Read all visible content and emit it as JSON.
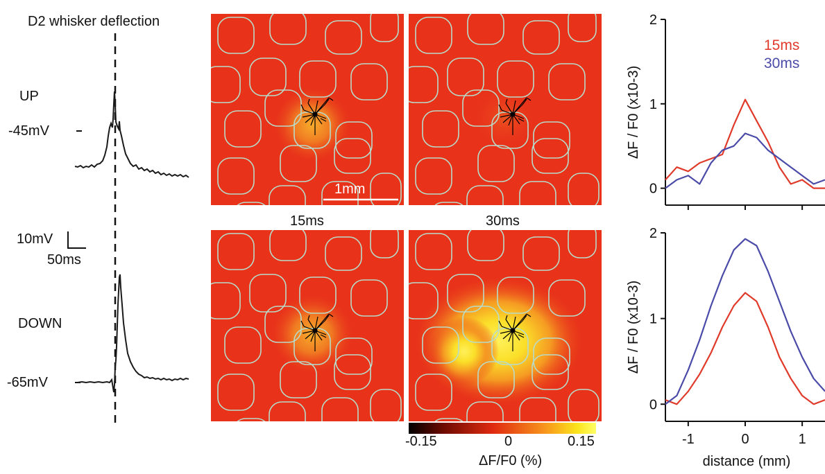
{
  "stimulus_label": "D2 whisker deflection",
  "traces": {
    "up_label": "UP",
    "down_label": "DOWN",
    "up_level": "-45mV",
    "down_level": "-65mV",
    "scale_voltage": "10mV",
    "scale_time": "50ms"
  },
  "imaging": {
    "scale_bar_label": "1mm",
    "time_labels": [
      "15ms",
      "30ms"
    ],
    "colorbar": {
      "ticks": [
        "-0.15",
        "0",
        "0.15"
      ],
      "label": "ΔF/F0 (%)",
      "colors": [
        "#000000",
        "#6b0a00",
        "#e02a10",
        "#f7921c",
        "#fbe41c",
        "#ffff66"
      ]
    },
    "background_color": "#e8321a",
    "barrel_outline_color": "#b8dcc9"
  },
  "chart_data": [
    {
      "type": "line",
      "panel": "UP state",
      "ylabel": "ΔF / F0 (x10-3)",
      "ylim": [
        -0.2,
        2.0
      ],
      "xlim": [
        -1.4,
        1.4
      ],
      "yticks": [
        "0",
        "1",
        "2"
      ],
      "legend": [
        "15ms",
        "30ms"
      ],
      "legend_position": "top-right",
      "x": [
        -1.4,
        -1.2,
        -1.0,
        -0.8,
        -0.6,
        -0.4,
        -0.2,
        0.0,
        0.2,
        0.4,
        0.6,
        0.8,
        1.0,
        1.2,
        1.4
      ],
      "series": [
        {
          "name": "15ms",
          "color": "#e03a2a",
          "values": [
            0.1,
            0.25,
            0.2,
            0.3,
            0.35,
            0.4,
            0.75,
            1.05,
            0.8,
            0.55,
            0.25,
            0.05,
            0.1,
            0.0,
            0.0
          ]
        },
        {
          "name": "30ms",
          "color": "#4a4aa8",
          "values": [
            0.0,
            0.1,
            0.15,
            0.05,
            0.3,
            0.45,
            0.5,
            0.65,
            0.6,
            0.45,
            0.35,
            0.25,
            0.15,
            0.05,
            0.1
          ]
        }
      ]
    },
    {
      "type": "line",
      "panel": "DOWN state",
      "ylabel": "ΔF / F0 (x10-3)",
      "xlabel": "distance (mm)",
      "ylim": [
        -0.2,
        2.0
      ],
      "xlim": [
        -1.4,
        1.4
      ],
      "yticks": [
        "0",
        "1",
        "2"
      ],
      "xticks": [
        "-1",
        "0",
        "1"
      ],
      "x": [
        -1.4,
        -1.2,
        -1.0,
        -0.8,
        -0.6,
        -0.4,
        -0.2,
        0.0,
        0.2,
        0.4,
        0.6,
        0.8,
        1.0,
        1.2,
        1.4
      ],
      "series": [
        {
          "name": "15ms",
          "color": "#e03a2a",
          "values": [
            0.05,
            0.0,
            0.15,
            0.35,
            0.6,
            0.9,
            1.15,
            1.3,
            1.2,
            0.9,
            0.55,
            0.3,
            0.1,
            0.0,
            0.05
          ]
        },
        {
          "name": "30ms",
          "color": "#4a4aa8",
          "values": [
            0.0,
            0.1,
            0.4,
            0.75,
            1.15,
            1.5,
            1.8,
            1.93,
            1.85,
            1.55,
            1.2,
            0.85,
            0.55,
            0.3,
            0.15
          ]
        }
      ]
    }
  ]
}
